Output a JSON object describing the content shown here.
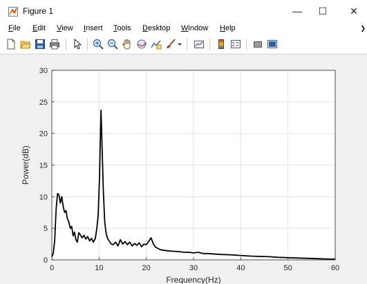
{
  "window": {
    "title": "Figure 1",
    "controls": {
      "minimize": "—",
      "maximize": "☐",
      "close": "✕"
    }
  },
  "menu": {
    "items": [
      {
        "label": "File",
        "mnemonic": "F",
        "rest": "ile"
      },
      {
        "label": "Edit",
        "mnemonic": "E",
        "rest": "dit"
      },
      {
        "label": "View",
        "mnemonic": "V",
        "rest": "iew"
      },
      {
        "label": "Insert",
        "mnemonic": "I",
        "rest": "nsert"
      },
      {
        "label": "Tools",
        "mnemonic": "T",
        "rest": "ools"
      },
      {
        "label": "Desktop",
        "mnemonic": "D",
        "rest": "esktop"
      },
      {
        "label": "Window",
        "mnemonic": "W",
        "rest": "indow"
      },
      {
        "label": "Help",
        "mnemonic": "H",
        "rest": "elp"
      }
    ],
    "overflow_arrow": "❯"
  },
  "toolbar": {
    "buttons": [
      "new-figure-icon",
      "open-file-icon",
      "save-icon",
      "print-icon",
      "pointer-icon",
      "zoom-in-icon",
      "zoom-out-icon",
      "pan-icon",
      "rotate-3d-icon",
      "data-cursor-icon",
      "brush-icon",
      "brush-dropdown-icon",
      "link-plot-icon",
      "colorbar-icon",
      "legend-icon",
      "hide-plot-tools-icon",
      "show-plot-tools-icon"
    ]
  },
  "chart_data": {
    "type": "line",
    "title": "",
    "xlabel": "Frequency(Hz)",
    "ylabel": "Power(dB)",
    "xlim": [
      0,
      60
    ],
    "ylim": [
      0,
      30
    ],
    "xticks": [
      0,
      10,
      20,
      30,
      40,
      50,
      60
    ],
    "yticks": [
      0,
      5,
      10,
      15,
      20,
      25,
      30
    ],
    "grid": true,
    "line_color": "#000000",
    "series": [
      {
        "x": [
          0,
          0.3,
          0.6,
          0.9,
          1.2,
          1.5,
          1.8,
          2.1,
          2.4,
          2.7,
          3.0,
          3.3,
          3.6,
          3.9,
          4.2,
          4.5,
          4.8,
          5.1,
          5.4,
          5.7,
          6.0,
          6.4,
          6.8,
          7.2,
          7.6,
          8.0,
          8.4,
          8.8,
          9.2,
          9.5,
          9.8,
          10.1,
          10.4,
          10.6,
          10.9,
          11.2,
          11.5,
          11.8,
          12.2,
          12.6,
          13.0,
          13.5,
          14.0,
          14.5,
          15.0,
          15.5,
          16.0,
          16.5,
          17.0,
          17.5,
          18.0,
          18.5,
          19.0,
          19.5,
          20.0,
          20.5,
          21.0,
          21.5,
          22.0,
          22.5,
          23.0,
          24.0,
          25.0,
          26.0,
          27.0,
          28.0,
          29.0,
          30.0,
          31.0,
          32.0,
          33.0,
          34.0,
          35.0,
          36.0,
          38.0,
          40.0,
          42.0,
          44.0,
          46.0,
          48.0,
          50.0,
          52.0,
          54.0,
          56.0,
          58.0,
          60.0
        ],
        "y": [
          0.5,
          1.0,
          3.0,
          8.0,
          10.5,
          10.3,
          9.0,
          10.0,
          8.5,
          7.5,
          7.8,
          6.5,
          6.0,
          5.0,
          5.3,
          3.8,
          4.4,
          3.2,
          2.8,
          4.3,
          4.0,
          3.5,
          3.9,
          3.3,
          3.7,
          3.0,
          3.4,
          2.8,
          3.4,
          4.8,
          7.0,
          13.0,
          23.7,
          19.0,
          11.0,
          6.0,
          4.2,
          3.4,
          2.9,
          2.5,
          2.4,
          2.8,
          2.2,
          3.2,
          2.5,
          2.9,
          2.4,
          2.8,
          2.2,
          2.6,
          2.3,
          2.7,
          2.1,
          2.5,
          2.4,
          2.9,
          3.5,
          2.5,
          2.0,
          1.8,
          1.6,
          1.5,
          1.4,
          1.35,
          1.3,
          1.2,
          1.2,
          1.1,
          1.2,
          1.0,
          1.0,
          0.95,
          0.9,
          0.85,
          0.8,
          0.7,
          0.6,
          0.55,
          0.5,
          0.4,
          0.35,
          0.3,
          0.25,
          0.2,
          0.15,
          0.1
        ]
      }
    ]
  }
}
